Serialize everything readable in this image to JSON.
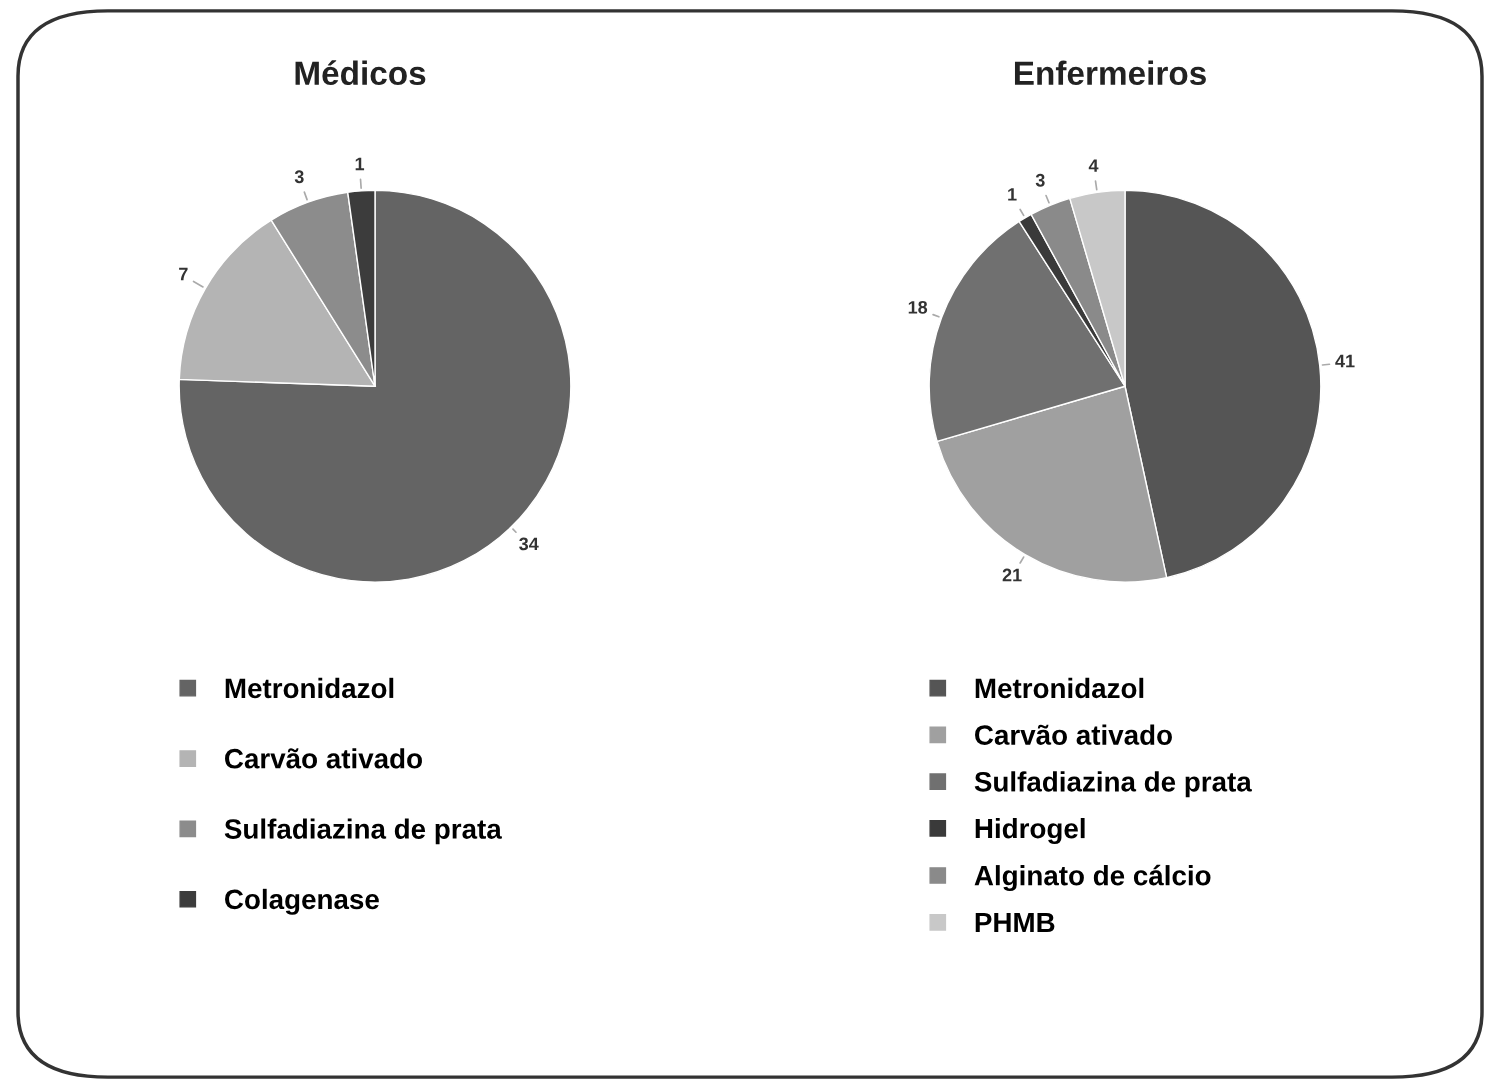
{
  "chart_data": [
    {
      "type": "pie",
      "title": "Médicos",
      "categories": [
        "Metronidazol",
        "Carvão ativado",
        "Sulfadiazina de prata",
        "Colagenase"
      ],
      "values": [
        34,
        7,
        3,
        1
      ],
      "colors": [
        "#646464",
        "#b4b4b4",
        "#8c8c8c",
        "#3c3c3c"
      ],
      "data_labels": true,
      "legend": "bottom"
    },
    {
      "type": "pie",
      "title": "Enfermeiros",
      "categories": [
        "Metronidazol",
        "Carvão ativado",
        "Sulfadiazina de prata",
        "Hidrogel",
        "Alginato de cálcio",
        "PHMB"
      ],
      "values": [
        41,
        21,
        18,
        1,
        3,
        4
      ],
      "colors": [
        "#555555",
        "#a0a0a0",
        "#707070",
        "#3a3a3a",
        "#8a8a8a",
        "#c8c8c8"
      ],
      "data_labels": true,
      "legend": "bottom"
    }
  ]
}
